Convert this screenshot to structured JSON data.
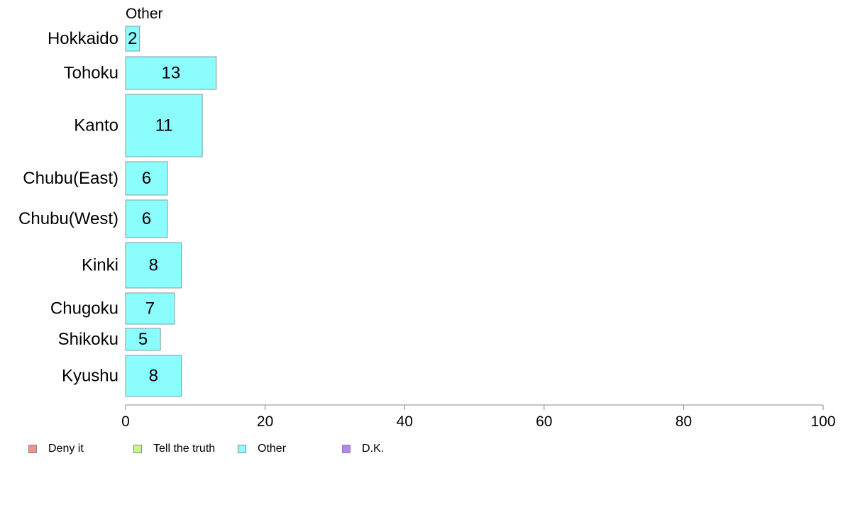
{
  "chart_data": {
    "type": "bar",
    "orientation": "horizontal",
    "panel_title": "Other",
    "categories": [
      "Hokkaido",
      "Tohoku",
      "Kanto",
      "Chubu(East)",
      "Chubu(West)",
      "Kinki",
      "Chugoku",
      "Shikoku",
      "Kyushu"
    ],
    "values": [
      2,
      13,
      11,
      6,
      6,
      8,
      7,
      5,
      8
    ],
    "xlim": [
      0,
      100
    ],
    "xticks": [
      0,
      20,
      40,
      60,
      80,
      100
    ],
    "grid": false,
    "legend_position": "bottom",
    "legend": [
      {
        "label": "Deny it",
        "color": "#f88f8f"
      },
      {
        "label": "Tell the truth",
        "color": "#c7f78a"
      },
      {
        "label": "Other",
        "color": "#8cfdfd"
      },
      {
        "label": "D.K.",
        "color": "#b585f7"
      }
    ],
    "bar_color": "#8cfdfd"
  }
}
